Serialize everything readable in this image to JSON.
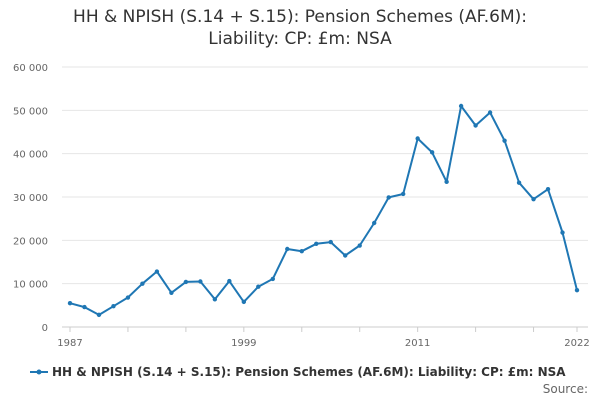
{
  "chart_data": {
    "type": "line",
    "title_line1": "HH & NPISH (S.14 + S.15): Pension Schemes (AF.6M):",
    "title_line2": "Liability: CP: £m: NSA",
    "xlabel": "",
    "ylabel": "",
    "x_ticks": [
      "1987",
      "1999",
      "2011",
      "2022"
    ],
    "y_ticks": [
      "0",
      "10 000",
      "20 000",
      "30 000",
      "40 000",
      "50 000",
      "60 000"
    ],
    "ylim": [
      0,
      60000
    ],
    "xlim": [
      1987,
      2022
    ],
    "grid": true,
    "legend_position": "bottom",
    "color": "#1f77b4",
    "series": [
      {
        "name": "HH & NPISH (S.14 + S.15): Pension Schemes (AF.6M): Liability: CP: £m: NSA",
        "x": [
          1987,
          1988,
          1989,
          1990,
          1991,
          1992,
          1993,
          1994,
          1995,
          1996,
          1997,
          1998,
          1999,
          2000,
          2001,
          2002,
          2003,
          2004,
          2005,
          2006,
          2007,
          2008,
          2009,
          2010,
          2011,
          2012,
          2013,
          2014,
          2015,
          2016,
          2017,
          2018,
          2019,
          2020,
          2021,
          2022
        ],
        "values": [
          5500,
          4600,
          2800,
          4800,
          6800,
          10000,
          12800,
          7900,
          10400,
          10500,
          6400,
          10600,
          5800,
          9300,
          11100,
          18000,
          17500,
          19200,
          19600,
          16500,
          18800,
          24000,
          29900,
          30700,
          43500,
          40300,
          33500,
          51000,
          46500,
          49500,
          43000,
          33300,
          29500,
          31800,
          21800,
          8500
        ]
      }
    ],
    "legend_label": "HH & NPISH (S.14 + S.15): Pension Schemes (AF.6M): Liability: CP: £m: NSA",
    "source_label": "Source:"
  }
}
